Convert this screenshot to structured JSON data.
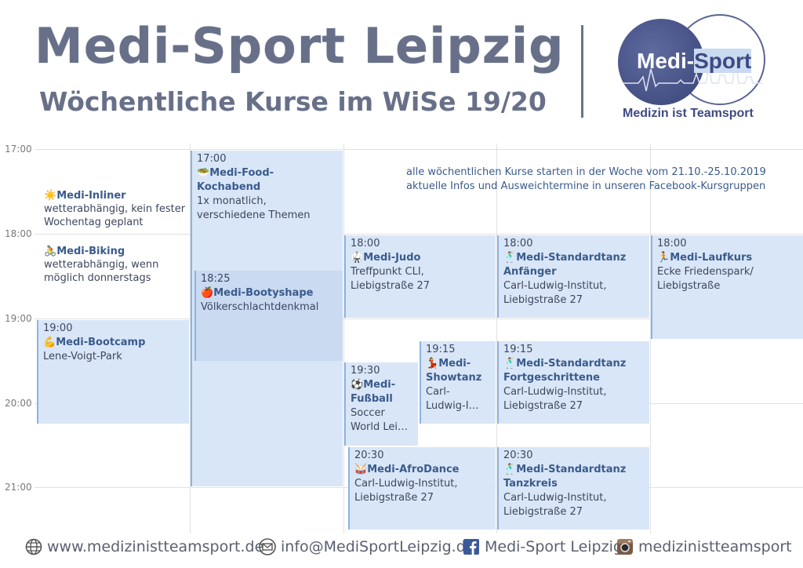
{
  "header": {
    "title": "Medi-Sport Leipzig",
    "subtitle": "Wöchentliche Kurse im WiSe 19/20",
    "logo_text_a": "Medi-",
    "logo_text_b": "Sport",
    "logo_slogan": "Medizin ist Teamsport"
  },
  "times": [
    "17:00",
    "18:00",
    "19:00",
    "20:00",
    "21:00"
  ],
  "notice": {
    "line1": "alle wöchentlichen Kurse starten in der Woche vom 21.10.-25.10.2019",
    "line2": "aktuelle Infos und Ausweichtermine in unseren Facebook-Kursgruppen"
  },
  "free_notes": {
    "inliner": {
      "emoji": "☀️",
      "name": "Medi-Inliner",
      "d1": "wetterabhängig, kein fester",
      "d2": "Wochentag geplant"
    },
    "biking": {
      "emoji": "🚴",
      "name": "Medi-Biking",
      "d1": "wetterabhängig, wenn",
      "d2": "möglich donnerstags"
    }
  },
  "events": {
    "bootcamp": {
      "time": "19:00",
      "emoji": "💪",
      "name": "Medi-Bootcamp",
      "d1": "Lene-Voigt-Park"
    },
    "food": {
      "time": "17:00",
      "emoji": "🥗",
      "name1": "Medi-Food-",
      "name2": "Kochabend",
      "d1": "1x monatlich,",
      "d2": "verschiedene Themen"
    },
    "booty": {
      "time": "18:25",
      "emoji": "🍎",
      "name": "Medi-Bootyshape",
      "d1": "Völkerschlachtdenkmal"
    },
    "judo": {
      "time": "18:00",
      "emoji": "🥋",
      "name": "Medi-Judo",
      "d1": "Treffpunkt CLI,",
      "d2": "Liebigstraße 27"
    },
    "fussball": {
      "time": "19:30",
      "emoji": "⚽",
      "name1": "Medi-",
      "name2": "Fußball",
      "d1": "Soccer",
      "d2": "World Lei…"
    },
    "showtanz": {
      "time": "19:15",
      "emoji": "💃",
      "name1": "Medi-",
      "name2": "Showtanz",
      "d1": "Carl-",
      "d2": "Ludwig-I…"
    },
    "afro": {
      "time": "20:30",
      "emoji": "🥁",
      "name": "Medi-AfroDance",
      "d1": "Carl-Ludwig-Institut,",
      "d2": "Liebigstraße 27"
    },
    "std_anf": {
      "time": "18:00",
      "emoji": "🕺",
      "name1": "Medi-Standardtanz",
      "name2": "Anfänger",
      "d1": "Carl-Ludwig-Institut,",
      "d2": "Liebigstraße 27"
    },
    "std_fort": {
      "time": "19:15",
      "emoji": "🕺",
      "name1": "Medi-Standardtanz",
      "name2": "Fortgeschrittene",
      "d1": "Carl-Ludwig-Institut,",
      "d2": "Liebigstraße 27"
    },
    "std_kreis": {
      "time": "20:30",
      "emoji": "🕺",
      "name1": "Medi-Standardtanz",
      "name2": "Tanzkreis",
      "d1": "Carl-Ludwig-Institut,",
      "d2": "Liebigstraße 27"
    },
    "lauf": {
      "time": "18:00",
      "emoji": "🏃",
      "name": "Medi-Laufkurs",
      "d1": "Ecke Friedenspark/",
      "d2": "Liebigstraße"
    }
  },
  "footer": {
    "web": "www.medizinistteamsport.de",
    "mail": "info@MediSportLeipzig.de",
    "facebook": "Medi-Sport Leipzig",
    "instagram": "medizinistteamsport"
  }
}
